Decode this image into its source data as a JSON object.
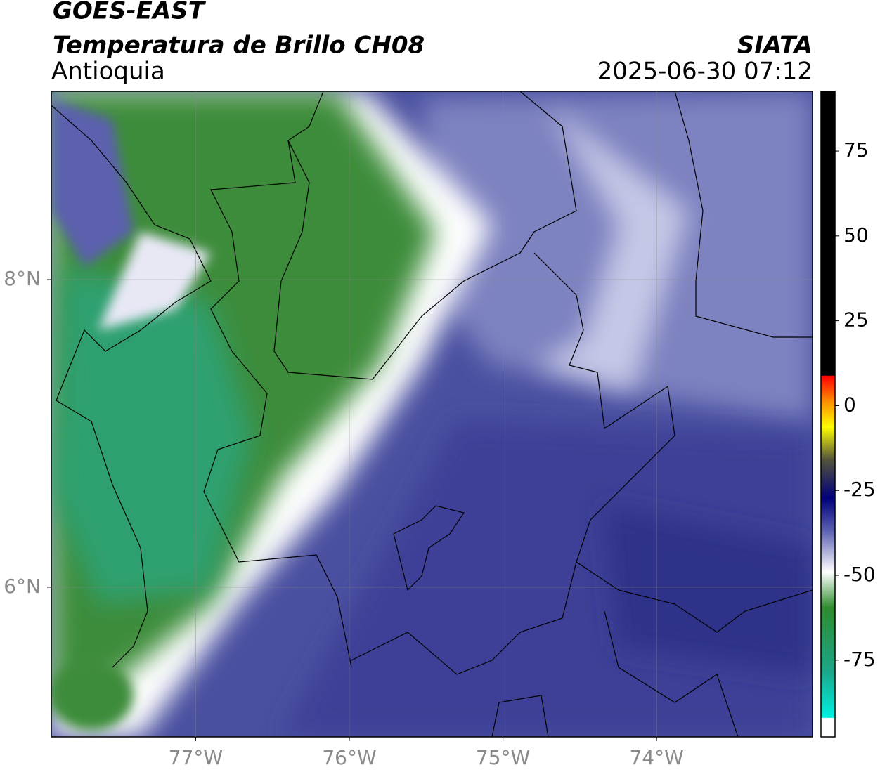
{
  "title": "GOES-EAST",
  "subtitle": "Temperatura de Brillo CH08",
  "region": "Antioquia",
  "source": "SIATA",
  "timestamp": "2025-06-30 07:12",
  "map": {
    "xlim": [
      -77.94,
      -72.985
    ],
    "ylim": [
      5.027,
      9.224
    ],
    "xticks": [
      {
        "value": -77,
        "label": "77°W"
      },
      {
        "value": -76,
        "label": "76°W"
      },
      {
        "value": -75,
        "label": "75°W"
      },
      {
        "value": -74,
        "label": "74°W"
      }
    ],
    "yticks": [
      {
        "value": 8,
        "label": "8°N"
      },
      {
        "value": 6,
        "label": "6°N"
      }
    ]
  },
  "colorbar": {
    "ylim": [
      -97.6,
      92.6
    ],
    "yticks": [
      75,
      50,
      25,
      0,
      -25,
      -50,
      -75
    ]
  }
}
